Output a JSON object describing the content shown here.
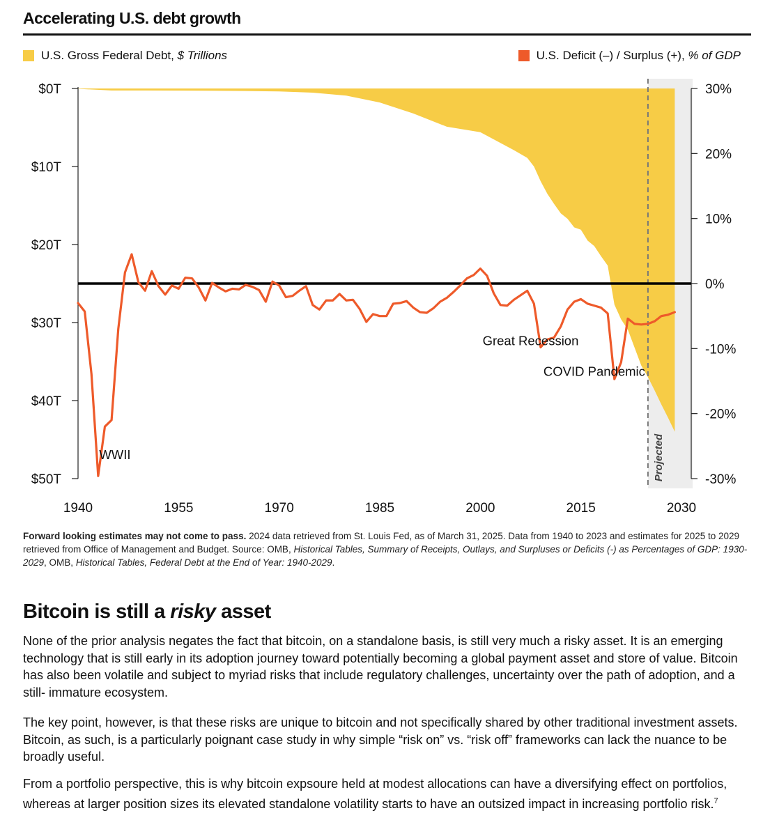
{
  "chart_data": {
    "type": "area+line",
    "title": "Accelerating U.S. debt growth",
    "legend": {
      "debt_prefix": "U.S. Gross Federal Debt, ",
      "debt_italic": "$ Trillions",
      "deficit_prefix": "U.S. Deficit (–) / Surplus (+), ",
      "deficit_italic": "% of GDP",
      "placement": "top"
    },
    "colors": {
      "debt": "#F7CC46",
      "deficit": "#EE5A2A",
      "zero_line": "#000000",
      "projected_band": "#EDEDED"
    },
    "x_ticks": [
      "1940",
      "1955",
      "1970",
      "1985",
      "2000",
      "2015",
      "2030"
    ],
    "xlim": [
      1940,
      2030
    ],
    "left_axis": {
      "ticks": [
        "$0T",
        "$10T",
        "$20T",
        "$30T",
        "$40T",
        "$50T"
      ],
      "lim": [
        0,
        50
      ],
      "inverted": true
    },
    "right_axis": {
      "ticks": [
        "30%",
        "20%",
        "10%",
        "0%",
        "-10%",
        "-20%",
        "-30%"
      ],
      "lim": [
        -30,
        30
      ]
    },
    "projected_from": 2025,
    "projected_label": "Projected",
    "annotations": [
      {
        "text": "WWII",
        "x": 1945.5,
        "y": -27
      },
      {
        "text": "Great Recession",
        "x": 2007.5,
        "y": -9.5
      },
      {
        "text": "COVID Pandemic",
        "x": 2017,
        "y": -14.2
      }
    ],
    "series": [
      {
        "name": "U.S. Gross Federal Debt",
        "kind": "area",
        "axis": "left",
        "x": [
          1940,
          1945,
          1950,
          1955,
          1960,
          1965,
          1970,
          1975,
          1980,
          1985,
          1990,
          1995,
          2000,
          2005,
          2007,
          2008,
          2009,
          2010,
          2011,
          2012,
          2013,
          2014,
          2015,
          2016,
          2017,
          2018,
          2019,
          2020,
          2021,
          2022,
          2023,
          2024,
          2025,
          2026,
          2027,
          2028,
          2029
        ],
        "values": [
          0.05,
          0.26,
          0.26,
          0.27,
          0.29,
          0.32,
          0.38,
          0.54,
          0.91,
          1.8,
          3.2,
          4.9,
          5.6,
          7.9,
          8.9,
          10.0,
          11.9,
          13.5,
          14.8,
          16.0,
          16.7,
          17.8,
          18.1,
          19.5,
          20.2,
          21.5,
          22.7,
          27.7,
          29.6,
          30.9,
          33.2,
          35.5,
          37.0,
          38.7,
          40.5,
          42.2,
          44.0
        ]
      },
      {
        "name": "U.S. Deficit (–) / Surplus (+)",
        "kind": "line",
        "axis": "right",
        "x": [
          1940,
          1941,
          1942,
          1943,
          1944,
          1945,
          1946,
          1947,
          1948,
          1949,
          1950,
          1951,
          1952,
          1953,
          1954,
          1955,
          1956,
          1957,
          1958,
          1959,
          1960,
          1961,
          1962,
          1963,
          1964,
          1965,
          1966,
          1967,
          1968,
          1969,
          1970,
          1971,
          1972,
          1973,
          1974,
          1975,
          1976,
          1977,
          1978,
          1979,
          1980,
          1981,
          1982,
          1983,
          1984,
          1985,
          1986,
          1987,
          1988,
          1989,
          1990,
          1991,
          1992,
          1993,
          1994,
          1995,
          1996,
          1997,
          1998,
          1999,
          2000,
          2001,
          2002,
          2003,
          2004,
          2005,
          2006,
          2007,
          2008,
          2009,
          2010,
          2011,
          2012,
          2013,
          2014,
          2015,
          2016,
          2017,
          2018,
          2019,
          2020,
          2021,
          2022,
          2023,
          2024,
          2025,
          2026,
          2027,
          2028,
          2029
        ],
        "values": [
          -3.0,
          -4.3,
          -13.9,
          -29.6,
          -22.0,
          -21.0,
          -7.0,
          1.7,
          4.5,
          0.2,
          -1.1,
          1.9,
          -0.4,
          -1.7,
          -0.3,
          -0.8,
          0.9,
          0.8,
          -0.6,
          -2.6,
          0.1,
          -0.6,
          -1.2,
          -0.8,
          -0.9,
          -0.2,
          -0.5,
          -1.0,
          -2.8,
          0.3,
          -0.3,
          -2.1,
          -1.9,
          -1.1,
          -0.4,
          -3.3,
          -4.0,
          -2.6,
          -2.6,
          -1.6,
          -2.6,
          -2.5,
          -3.9,
          -5.9,
          -4.7,
          -5.0,
          -5.0,
          -3.1,
          -3.0,
          -2.7,
          -3.7,
          -4.4,
          -4.5,
          -3.8,
          -2.8,
          -2.2,
          -1.3,
          -0.3,
          0.8,
          1.3,
          2.3,
          1.2,
          -1.5,
          -3.3,
          -3.4,
          -2.5,
          -1.8,
          -1.1,
          -3.1,
          -9.8,
          -8.6,
          -8.3,
          -6.6,
          -4.0,
          -2.8,
          -2.4,
          -3.1,
          -3.4,
          -3.7,
          -4.6,
          -14.7,
          -12.1,
          -5.4,
          -6.2,
          -6.3,
          -6.2,
          -5.8,
          -5.0,
          -4.8,
          -4.4
        ]
      }
    ]
  },
  "footnote": {
    "bold": "Forward looking estimates may not come to pass.",
    "text1": " 2024 data retrieved from St. Louis Fed, as of March 31, 2025. Data from 1940 to 2023 and estimates for 2025 to 2029 retrieved from Office of Management and Budget. Source: OMB, ",
    "italic1": "Historical Tables, Summary of Receipts, Outlays, and Surpluses or Deficits (-) as Percentages of GDP: 1930-2029",
    "text2": ", OMB, ",
    "italic2": "Historical Tables, Federal Debt at the End of Year: 1940-2029",
    "text3": "."
  },
  "section": {
    "title_prefix": "Bitcoin is still a ",
    "title_italic": "risky",
    "title_suffix": " asset",
    "para1": "None of the prior analysis negates the fact that bitcoin, on a standalone basis, is still very much a risky asset. It is an emerging technology that is still early in its adoption journey toward potentially becoming a global payment asset and store of value. Bitcoin has also been volatile and subject to myriad risks that include regulatory challenges, uncertainty over the path of adoption, and a still- immature ecosystem.",
    "para2": "The key point, however, is that these risks are unique to bitcoin and not specifically shared by other traditional investment assets. Bitcoin, as such, is a particularly poignant case study in why simple “risk on” vs. “risk off” frameworks can lack the nuance to be broadly useful.",
    "para3": "From a portfolio perspective, this is why bitcoin expsoure held at modest allocations can have a diversifying effect on portfolios, whereas at larger position sizes its elevated standalone volatility starts to have an outsized impact in increasing portfolio risk.",
    "para3_sup": "7"
  }
}
